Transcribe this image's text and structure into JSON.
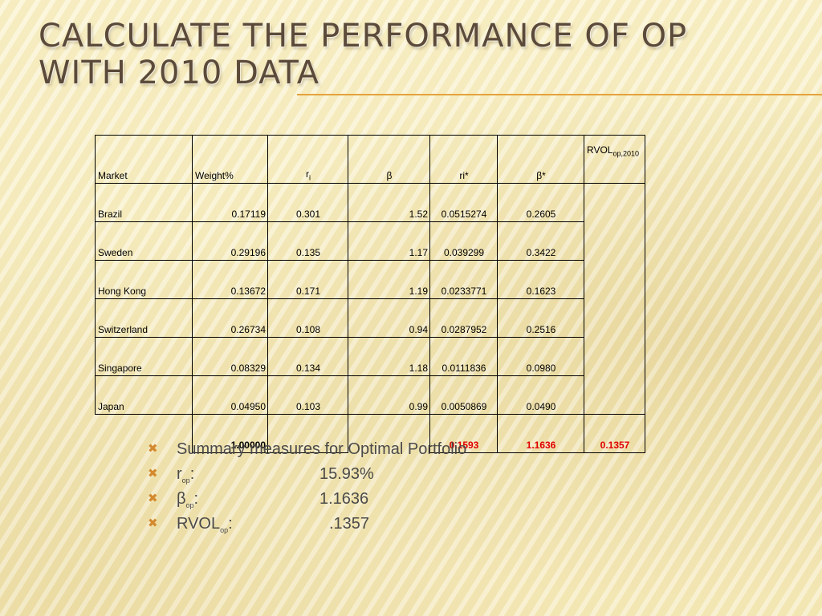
{
  "slide": {
    "title_line1": "CALCULATE THE PERFORMANCE OF OP",
    "title_line2": "WITH 2010 DATA"
  },
  "table": {
    "headers": {
      "market": "Market",
      "weight": "Weight%",
      "ri_base": "r",
      "ri_sub": "i",
      "beta": "β",
      "ri_star": "ri*",
      "beta_star": "β*",
      "rvol_base": "RVOL",
      "rvol_sub": "op,2010"
    },
    "rows": [
      {
        "market": "Brazil",
        "weight": "0.17119",
        "ri": "0.301",
        "beta": "1.52",
        "ri_star": "0.0515274",
        "beta_star": "0.2605"
      },
      {
        "market": "Sweden",
        "weight": "0.29196",
        "ri": "0.135",
        "beta": "1.17",
        "ri_star": "0.039299",
        "beta_star": "0.3422"
      },
      {
        "market": "Hong Kong",
        "weight": "0.13672",
        "ri": "0.171",
        "beta": "1.19",
        "ri_star": "0.0233771",
        "beta_star": "0.1623"
      },
      {
        "market": "Switzerland",
        "weight": "0.26734",
        "ri": "0.108",
        "beta": "0.94",
        "ri_star": "0.0287952",
        "beta_star": "0.2516"
      },
      {
        "market": "Singapore",
        "weight": "0.08329",
        "ri": "0.134",
        "beta": "1.18",
        "ri_star": "0.0111836",
        "beta_star": "0.0980"
      },
      {
        "market": "Japan",
        "weight": "0.04950",
        "ri": "0.103",
        "beta": "0.99",
        "ri_star": "0.0050869",
        "beta_star": "0.0490"
      }
    ],
    "totals": {
      "weight": "1.00000",
      "ri_star": "0.1593",
      "beta_star": "1.1636",
      "rvol": "0.1357"
    },
    "colors": {
      "totals_highlight": "#e00000"
    }
  },
  "summary": {
    "heading": "Summary measures for Optimal Portfolio",
    "items": [
      {
        "label_base": "r",
        "label_sub": "op",
        "suffix": ":",
        "value": "15.93%"
      },
      {
        "label_base": "β",
        "label_sub": "op",
        "suffix": ":",
        "value": "1.1636"
      },
      {
        "label_base": "RVOL",
        "label_sub": "op",
        "suffix": ":",
        "value": ".1357"
      }
    ],
    "bullet_icon": "x-bullet-icon",
    "bullet_color": "#d38a2e"
  }
}
